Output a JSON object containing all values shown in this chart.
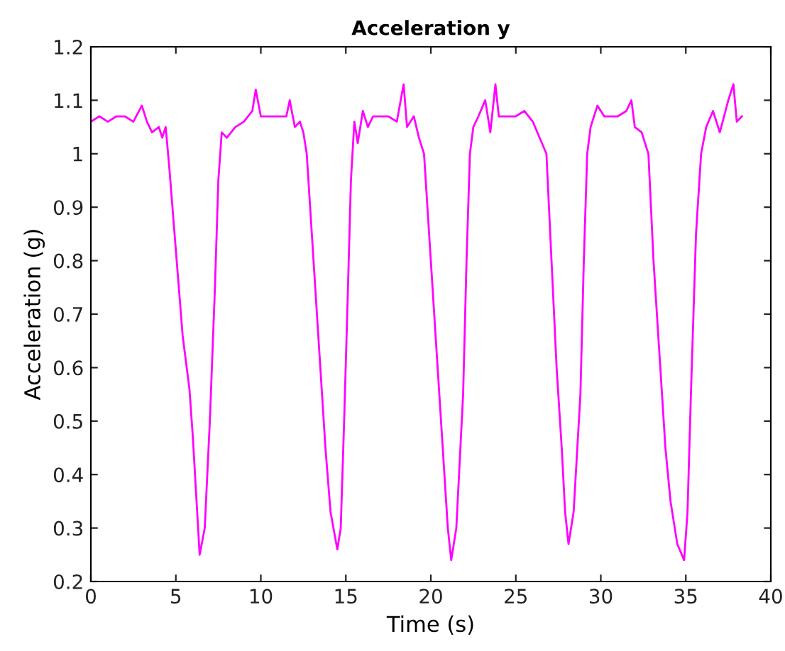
{
  "chart_data": {
    "type": "line",
    "title": "Acceleration y",
    "xlabel": "Time (s)",
    "ylabel": "Acceleration (g)",
    "xlim": [
      0,
      40
    ],
    "xticks": [
      0,
      5,
      10,
      15,
      20,
      25,
      30,
      35,
      40
    ],
    "ylim": [
      0.2,
      1.2
    ],
    "yticks": [
      0.2,
      0.3,
      0.4,
      0.5,
      0.6,
      0.7,
      0.8,
      0.9,
      1,
      1.1,
      1.2
    ],
    "grid": false,
    "legend": false,
    "marker": "none",
    "line_style": "solid",
    "series": [
      {
        "color": "#ff00ff",
        "x": [
          0,
          0.5,
          1,
          1.5,
          2,
          2.5,
          3,
          3.3,
          3.6,
          4.0,
          4.2,
          4.4,
          4.6,
          5.0,
          5.4,
          5.8,
          6.0,
          6.2,
          6.4,
          6.7,
          7.0,
          7.3,
          7.5,
          7.7,
          8.0,
          8.5,
          9.0,
          9.5,
          9.7,
          10,
          10.5,
          11,
          11.5,
          11.7,
          12,
          12.3,
          12.5,
          12.7,
          13.1,
          13.5,
          13.8,
          14.1,
          14.5,
          14.7,
          14.9,
          15.1,
          15.3,
          15.5,
          15.7,
          16,
          16.3,
          16.6,
          17,
          17.5,
          18,
          18.4,
          18.6,
          19,
          19.3,
          19.6,
          20,
          20.4,
          20.7,
          21,
          21.2,
          21.5,
          21.9,
          22.1,
          22.3,
          22.5,
          22.8,
          23.2,
          23.5,
          23.8,
          24,
          25,
          25.5,
          26,
          26.4,
          26.8,
          27.1,
          27.4,
          27.7,
          27.9,
          28.1,
          28.4,
          28.8,
          29.0,
          29.2,
          29.4,
          29.8,
          30.2,
          31,
          31.5,
          31.8,
          32,
          32.4,
          32.8,
          33.1,
          33.5,
          33.8,
          34.1,
          34.5,
          34.9,
          35.1,
          35.3,
          35.6,
          35.9,
          36.2,
          36.6,
          37,
          37.5,
          37.8,
          38,
          38.3
        ],
        "values": [
          1.06,
          1.07,
          1.06,
          1.07,
          1.07,
          1.06,
          1.09,
          1.06,
          1.04,
          1.05,
          1.03,
          1.05,
          0.98,
          0.82,
          0.66,
          0.56,
          0.47,
          0.36,
          0.25,
          0.3,
          0.5,
          0.75,
          0.95,
          1.04,
          1.03,
          1.05,
          1.06,
          1.08,
          1.12,
          1.07,
          1.07,
          1.07,
          1.07,
          1.1,
          1.05,
          1.06,
          1.04,
          1.0,
          0.8,
          0.6,
          0.45,
          0.33,
          0.26,
          0.3,
          0.5,
          0.72,
          0.95,
          1.06,
          1.02,
          1.08,
          1.05,
          1.07,
          1.07,
          1.07,
          1.06,
          1.13,
          1.05,
          1.07,
          1.03,
          1.0,
          0.8,
          0.6,
          0.45,
          0.3,
          0.24,
          0.3,
          0.55,
          0.8,
          1.0,
          1.05,
          1.07,
          1.1,
          1.04,
          1.13,
          1.07,
          1.07,
          1.08,
          1.06,
          1.03,
          1.0,
          0.8,
          0.6,
          0.45,
          0.33,
          0.27,
          0.33,
          0.55,
          0.8,
          1.0,
          1.05,
          1.09,
          1.07,
          1.07,
          1.08,
          1.1,
          1.05,
          1.04,
          1.0,
          0.8,
          0.6,
          0.45,
          0.35,
          0.27,
          0.24,
          0.33,
          0.55,
          0.85,
          1.0,
          1.05,
          1.08,
          1.04,
          1.1,
          1.13,
          1.06,
          1.07
        ]
      }
    ]
  }
}
